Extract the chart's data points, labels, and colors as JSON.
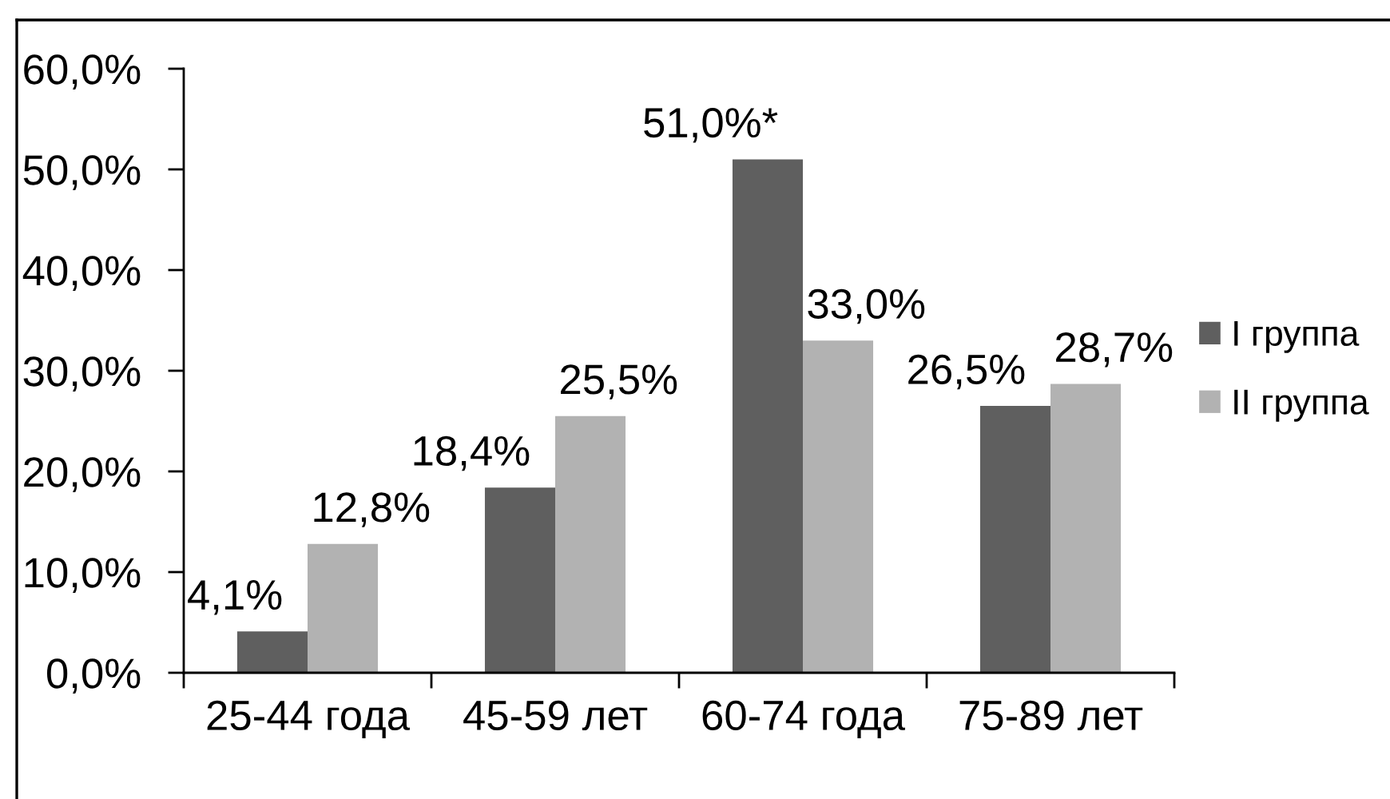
{
  "chart_data": {
    "type": "bar",
    "categories": [
      "25-44 года",
      "45-59 лет",
      "60-74 года",
      "75-89 лет"
    ],
    "series": [
      {
        "name": "I группа",
        "color": "#5f5f5f",
        "values": [
          4.1,
          18.4,
          51.0,
          26.5
        ],
        "value_labels": [
          "4,1%",
          "18,4%",
          "51,0%*",
          "26,5%"
        ]
      },
      {
        "name": "II группа",
        "color": "#b2b2b2",
        "values": [
          12.8,
          25.5,
          33.0,
          28.7
        ],
        "value_labels": [
          "12,8%",
          "25,5%",
          "33,0%",
          "28,7%"
        ]
      }
    ],
    "ylim": [
      0,
      60
    ],
    "yticks": [
      {
        "value": 0,
        "label": "0,0%"
      },
      {
        "value": 10,
        "label": "10,0%"
      },
      {
        "value": 20,
        "label": "20,0%"
      },
      {
        "value": 30,
        "label": "30,0%"
      },
      {
        "value": 40,
        "label": "40,0%"
      },
      {
        "value": 50,
        "label": "50,0%"
      },
      {
        "value": 60,
        "label": "60,0%"
      }
    ],
    "grid": false,
    "legend": "right"
  }
}
